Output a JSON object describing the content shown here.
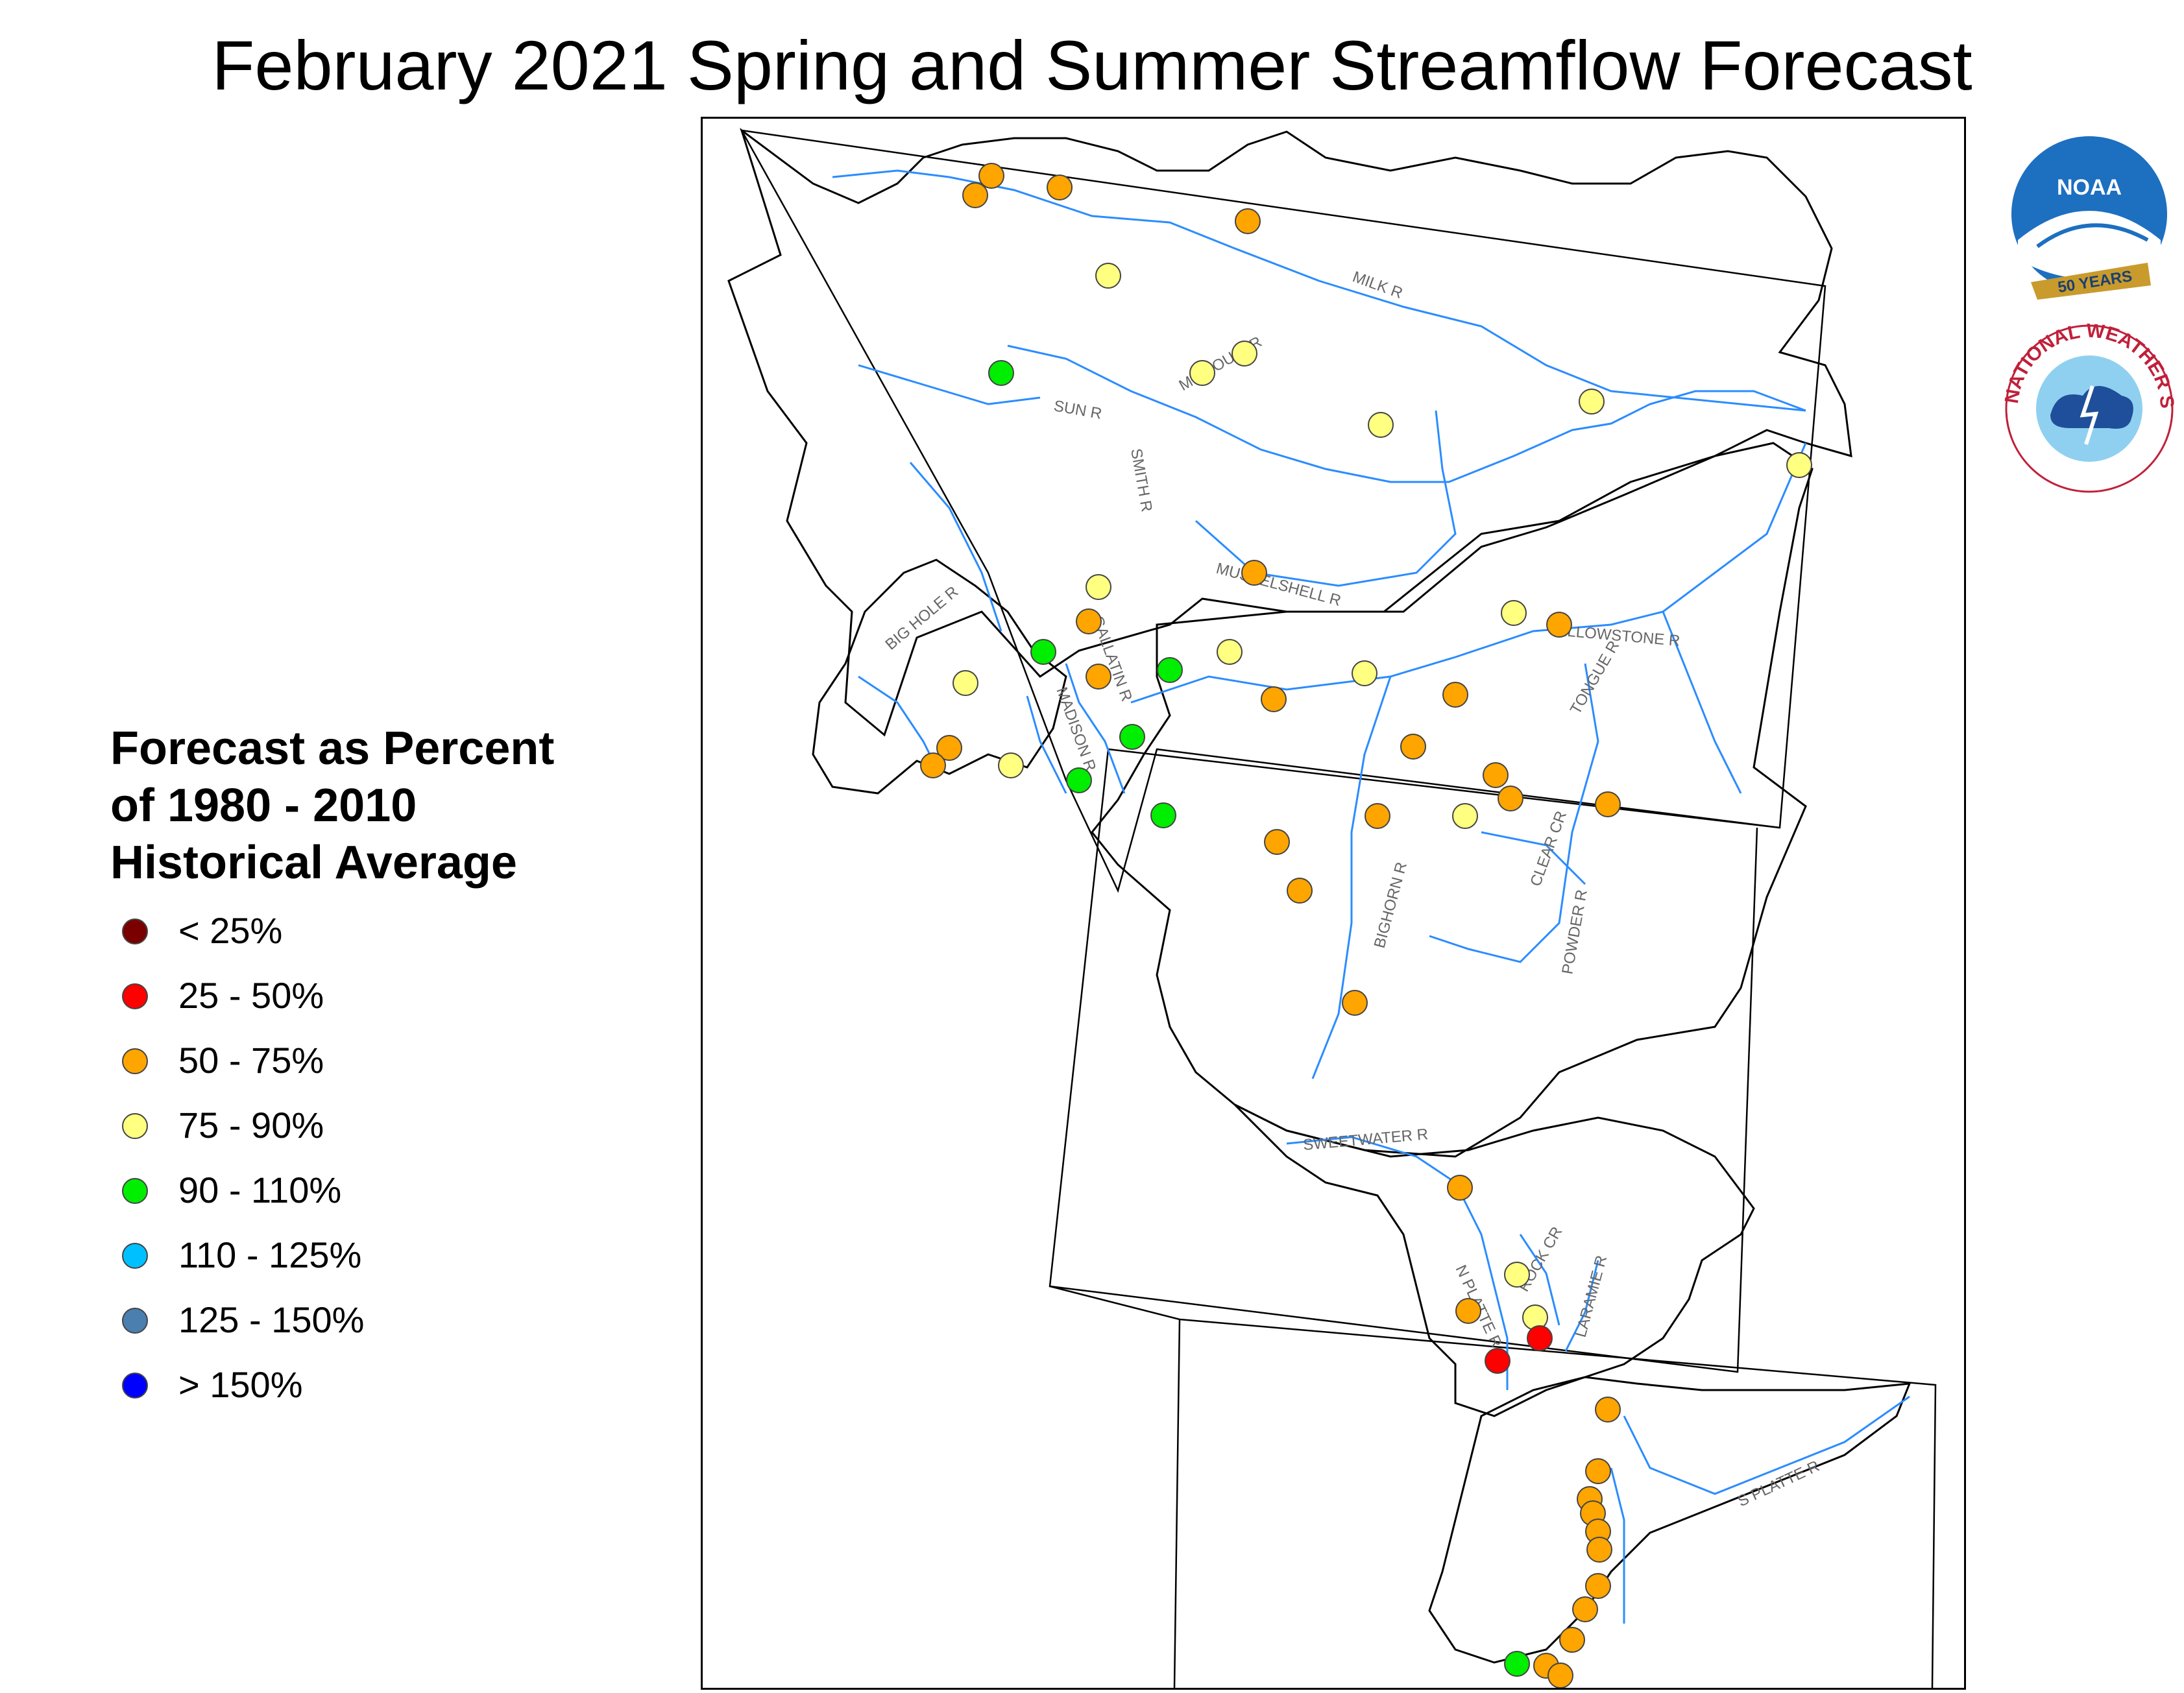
{
  "title": "February 2021 Spring and Summer Streamflow Forecast",
  "legend": {
    "title_lines": [
      "Forecast as Percent",
      "of 1980 - 2010",
      "Historical Average"
    ],
    "items": [
      {
        "label": "< 25%",
        "color": "#7a0000"
      },
      {
        "label": "25 - 50%",
        "color": "#ff0000"
      },
      {
        "label": "50 - 75%",
        "color": "#ffa500"
      },
      {
        "label": "75 - 90%",
        "color": "#ffff80"
      },
      {
        "label": "90 - 110%",
        "color": "#00ee00"
      },
      {
        "label": "110 - 125%",
        "color": "#00c0ff"
      },
      {
        "label": "125 - 150%",
        "color": "#4a7fb0"
      },
      {
        "label": "> 150%",
        "color": "#0000ff"
      }
    ]
  },
  "river_labels": [
    "MILK R",
    "MISSOURI R",
    "SUN R",
    "SMITH R",
    "MUSSELSHELL R",
    "BIG HOLE R",
    "GALLATIN R",
    "MADISON R",
    "YELLOWSTONE R",
    "TONGUE R",
    "CLEAR CR",
    "POWDER R",
    "BIGHORN R",
    "SWEETWATER R",
    "N PLATTE R",
    "ROCK CR",
    "LARAMIE R",
    "S PLATTE R"
  ],
  "logos": {
    "noaa_text": "NOAA",
    "noaa_anniversary": "50 YEARS",
    "nws_text": "NATIONAL WEATHER SERVICE"
  },
  "colors": {
    "river": "#2b8cff",
    "lake": "#4f7fe6",
    "boundary": "#000000",
    "state_line": "#000000"
  }
}
